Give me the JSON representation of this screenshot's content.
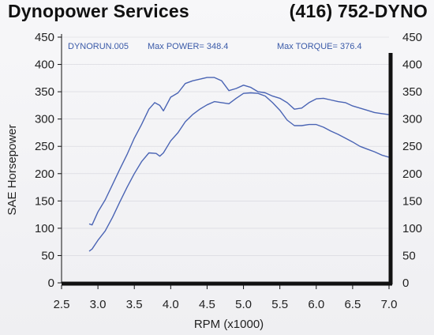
{
  "header": {
    "company": "Dynopower Services",
    "phone": "(416) 752-DYNO"
  },
  "colors": {
    "curve": "#4a64b4",
    "annotation": "#3a5aa8",
    "axis": "#111111",
    "grid": "#d4d4dc"
  },
  "chart_data": {
    "type": "line",
    "xlabel": "RPM (x1000)",
    "ylabel": "SAE Horsepower",
    "xlim": [
      2.5,
      7.0
    ],
    "ylim": [
      0,
      450
    ],
    "xticks": [
      "2.5",
      "3.0",
      "3.5",
      "4.0",
      "4.5",
      "5.0",
      "5.5",
      "6.0",
      "6.5",
      "7.0"
    ],
    "yticks": [
      "0",
      "50",
      "100",
      "150",
      "200",
      "250",
      "300",
      "350",
      "400",
      "450"
    ],
    "yticks_right": [
      "0",
      "50",
      "100",
      "150",
      "200",
      "250",
      "300",
      "350",
      "400",
      "450"
    ],
    "annotations": {
      "run": "DYNORUN.005",
      "max_power": "Max POWER= 348.4",
      "max_torque": "Max TORQUE= 376.4"
    },
    "series": [
      {
        "x": [
          2.88,
          2.92,
          3.0,
          3.1,
          3.2,
          3.3,
          3.4,
          3.5,
          3.6,
          3.7,
          3.78,
          3.85,
          3.9,
          4.0,
          4.1,
          4.2,
          4.3,
          4.4,
          4.5,
          4.6,
          4.7,
          4.8,
          4.9,
          5.0,
          5.1,
          5.2,
          5.3,
          5.4,
          5.5,
          5.6,
          5.7,
          5.8,
          5.9,
          6.0,
          6.1,
          6.2,
          6.3,
          6.4,
          6.5,
          6.6,
          6.7,
          6.8,
          6.9,
          7.0
        ],
        "values": [
          108,
          106,
          130,
          152,
          180,
          208,
          235,
          265,
          290,
          318,
          330,
          325,
          315,
          340,
          348,
          365,
          370,
          373,
          376,
          376,
          370,
          352,
          356,
          362,
          358,
          350,
          348,
          342,
          338,
          330,
          318,
          320,
          330,
          337,
          338,
          335,
          332,
          330,
          324,
          320,
          316,
          312,
          310,
          308
        ]
      },
      {
        "x": [
          2.88,
          2.92,
          3.0,
          3.1,
          3.2,
          3.3,
          3.4,
          3.5,
          3.6,
          3.7,
          3.8,
          3.85,
          3.9,
          4.0,
          4.1,
          4.2,
          4.3,
          4.4,
          4.5,
          4.6,
          4.7,
          4.8,
          4.9,
          5.0,
          5.1,
          5.2,
          5.3,
          5.4,
          5.5,
          5.6,
          5.7,
          5.8,
          5.9,
          6.0,
          6.1,
          6.2,
          6.3,
          6.4,
          6.5,
          6.6,
          6.7,
          6.8,
          6.9,
          7.0
        ],
        "values": [
          58,
          62,
          78,
          95,
          120,
          148,
          175,
          200,
          222,
          238,
          237,
          232,
          238,
          260,
          275,
          295,
          308,
          318,
          326,
          332,
          330,
          328,
          338,
          347,
          348,
          347,
          342,
          330,
          316,
          298,
          288,
          288,
          290,
          290,
          285,
          278,
          272,
          265,
          258,
          250,
          245,
          240,
          234,
          230
        ]
      }
    ]
  }
}
